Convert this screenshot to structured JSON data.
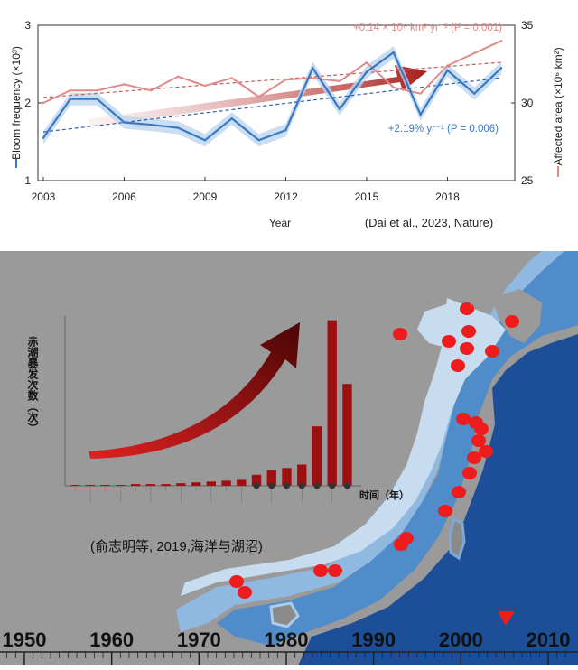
{
  "chart_data": [
    {
      "type": "line",
      "xlabel": "Year",
      "ylabel_left": "Bloom frequency (×10³)",
      "ylabel_right": "Affected area (×10⁶ km²)",
      "x_ticks": [
        "2003",
        "2006",
        "2009",
        "2012",
        "2015",
        "2018"
      ],
      "y_left_ticks": [
        "1",
        "2",
        "3"
      ],
      "y_right_ticks": [
        "25",
        "30",
        "35"
      ],
      "ylim_left": [
        1,
        3
      ],
      "ylim_right": [
        25,
        35
      ],
      "xlim": [
        2002.8,
        2020.5
      ],
      "x": [
        2003,
        2004,
        2005,
        2006,
        2007,
        2008,
        2009,
        2010,
        2011,
        2012,
        2013,
        2014,
        2015,
        2016,
        2017,
        2018,
        2019,
        2020
      ],
      "series": [
        {
          "name": "Bloom frequency",
          "axis": "left",
          "color": "#3a78c2",
          "values": [
            1.55,
            2.05,
            2.05,
            1.75,
            1.72,
            1.68,
            1.52,
            1.8,
            1.52,
            1.65,
            2.45,
            1.92,
            2.4,
            2.65,
            1.85,
            2.42,
            2.12,
            2.45
          ]
        },
        {
          "name": "Affected area",
          "axis": "right",
          "color": "#e08a8a",
          "values": [
            30.0,
            30.8,
            30.8,
            31.2,
            30.8,
            31.7,
            31.1,
            31.6,
            30.4,
            31.5,
            31.6,
            31.4,
            32.6,
            31.0,
            30.6,
            32.4,
            33.2,
            34.0
          ]
        }
      ],
      "trend_area_label": "+0.14 × 10⁶ km² yr⁻¹ (P = 0.001)",
      "trend_freq_label": "+2.19% yr⁻¹ (P = 0.006)",
      "citation": "(Dai et al., 2023, Nature)"
    },
    {
      "type": "bar",
      "ylabel": "赤潮暴发次数（次）",
      "xlabel": "时间（年）",
      "values": [
        1,
        1,
        1,
        1,
        2,
        2,
        2,
        3,
        4,
        5,
        6,
        7,
        13,
        18,
        21,
        25,
        70,
        195,
        120
      ],
      "ylim": [
        0,
        200
      ],
      "citation": "(俞志明等, 2019,海洋与湖沼)",
      "timeline": [
        "1950",
        "1960",
        "1970",
        "1980",
        "1990",
        "2000",
        "2010"
      ]
    }
  ],
  "colors": {
    "freq": "#3a78c2",
    "area": "#e08a8a",
    "bar": "#9e1010",
    "ocean_dark": "#1a4a8e",
    "map_bg": "#9a9a9a",
    "dot": "#ee1c1c"
  }
}
